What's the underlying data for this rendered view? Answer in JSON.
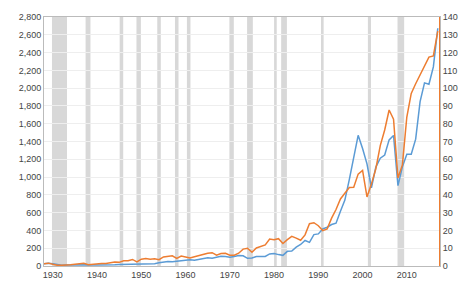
{
  "chart_data": {
    "type": "line",
    "x": [
      1928,
      1929,
      1930,
      1931,
      1932,
      1933,
      1934,
      1935,
      1936,
      1937,
      1938,
      1939,
      1940,
      1941,
      1942,
      1943,
      1944,
      1945,
      1946,
      1947,
      1948,
      1949,
      1950,
      1951,
      1952,
      1953,
      1954,
      1955,
      1956,
      1957,
      1958,
      1959,
      1960,
      1961,
      1962,
      1963,
      1964,
      1965,
      1966,
      1967,
      1968,
      1969,
      1970,
      1971,
      1972,
      1973,
      1974,
      1975,
      1976,
      1977,
      1978,
      1979,
      1980,
      1981,
      1982,
      1983,
      1984,
      1985,
      1986,
      1987,
      1988,
      1989,
      1990,
      1991,
      1992,
      1993,
      1994,
      1995,
      1996,
      1997,
      1998,
      1999,
      2000,
      2001,
      2002,
      2003,
      2004,
      2005,
      2006,
      2007,
      2008,
      2009,
      2010,
      2011,
      2012,
      2013,
      2014,
      2015,
      2016,
      2017
    ],
    "series": [
      {
        "color": "#5b9bd5",
        "values": [
          24.35,
          31.71,
          25.92,
          15.18,
          8.12,
          9.93,
          10.97,
          13.09,
          17.18,
          18.68,
          13.95,
          13.16,
          12.3,
          11.28,
          9.77,
          11.5,
          13.28,
          17.36,
          19.03,
          17.08,
          17.65,
          16.66,
          20.41,
          24.73,
          26.57,
          26.18,
          35.98,
          45.48,
          49.74,
          49.13,
          55.62,
          60.51,
          60.39,
          71.55,
          65.24,
          75.02,
          86.12,
          92.43,
          86.13,
          96.47,
          108.37,
          106.57,
          99.7,
          107.86,
          119.12,
          114.63,
          86.0,
          90.19,
          107.46,
          107.46,
          107.94,
          135.76,
          140.52,
          128.05,
          119.71,
          164.93,
          167.24,
          211.28,
          242.17,
          286.83,
          265.79,
          353.4,
          360.72,
          417.09,
          435.71,
          466.45,
          481.92,
          615.93,
          740.74,
          970.43,
          1229.23,
          1469.25,
          1320.28,
          1148.08,
          879.82,
          1111.91,
          1211.92,
          1248.29,
          1418.3,
          1468.36,
          903.25,
          1115.1,
          1257.64,
          1257.6,
          1426.19,
          1848.36,
          2058.9,
          2043.94,
          2238.83,
          2673.61
        ]
      },
      {
        "color": "#ed7d31",
        "axis": "y2",
        "values": [
          1.27,
          1.61,
          0.97,
          0.41,
          0.41,
          0.44,
          0.67,
          0.97,
          1.25,
          1.56,
          0.75,
          1.04,
          1.2,
          1.36,
          1.47,
          1.73,
          2.3,
          2.06,
          2.94,
          2.97,
          3.68,
          2.34,
          3.81,
          4.28,
          3.86,
          4.08,
          3.52,
          5.11,
          5.46,
          5.72,
          4.32,
          5.59,
          5.09,
          4.56,
          5.21,
          5.93,
          6.77,
          7.16,
          7.49,
          6.1,
          7.03,
          7.11,
          6.01,
          6.07,
          7.19,
          9.49,
          9.99,
          7.71,
          10.14,
          10.89,
          11.89,
          15.18,
          14.82,
          15.36,
          12.64,
          14.82,
          16.64,
          15.68,
          14.48,
          17.5,
          23.81,
          24.32,
          22.65,
          19.9,
          20.87,
          26.9,
          31.75,
          37.7,
          40.63,
          44.09,
          44.27,
          51.68,
          53.7,
          38.85,
          46.04,
          54.69,
          67.68,
          76.45,
          87.72,
          82.54,
          49.51,
          56.86,
          83.77,
          97.05,
          102.47,
          107.3,
          113.01,
          117.46,
          118.1,
          132.0
        ]
      }
    ],
    "xlim": [
      1928.0,
      2017.5
    ],
    "xticks": [
      1930,
      1940,
      1950,
      1960,
      1970,
      1980,
      1990,
      2000,
      2010
    ],
    "ylim": [
      0,
      2800
    ],
    "yticks": [
      0,
      200,
      400,
      600,
      800,
      {
        "value": 1000,
        "label": "1,000"
      },
      {
        "value": 1200,
        "label": "1,200"
      },
      {
        "value": 1400,
        "label": "1,400"
      },
      {
        "value": 1600,
        "label": "1,600"
      },
      {
        "value": 1800,
        "label": "1,800"
      },
      {
        "value": 2000,
        "label": "2,000"
      },
      {
        "value": 2200,
        "label": "2,200"
      },
      {
        "value": 2400,
        "label": "2,400"
      },
      {
        "value": 2600,
        "label": "2,600"
      },
      {
        "value": 2800,
        "label": "2,800"
      }
    ],
    "y2lim": [
      0,
      140
    ],
    "y2ticks": [
      0,
      10,
      20,
      30,
      40,
      50,
      60,
      70,
      80,
      90,
      100,
      110,
      120,
      130,
      140
    ],
    "grid": true,
    "recession_bands": {
      "color": "#d8d8d8",
      "ranges": [
        [
          1929.8,
          1933.2
        ],
        [
          1937.4,
          1938.5
        ],
        [
          1945.1,
          1945.9
        ],
        [
          1948.9,
          1949.9
        ],
        [
          1953.6,
          1954.4
        ],
        [
          1957.6,
          1958.4
        ],
        [
          1960.3,
          1961.1
        ],
        [
          1969.9,
          1970.9
        ],
        [
          1973.9,
          1975.2
        ],
        [
          1980.0,
          1980.6
        ],
        [
          1981.6,
          1982.9
        ],
        [
          1990.6,
          1991.2
        ],
        [
          2001.2,
          2001.9
        ],
        [
          2007.9,
          2009.4
        ]
      ]
    },
    "vline": {
      "x": 2017.5,
      "color": "#ed7d31"
    }
  }
}
